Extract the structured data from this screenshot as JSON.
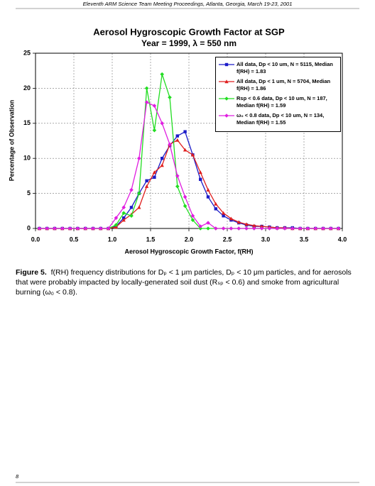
{
  "header": {
    "title": "Eleventh ARM Science Team Meeting Proceedings, Atlanta, Georgia, March 19-23, 2001"
  },
  "chart_data": {
    "type": "line",
    "title": "Aerosol Hygroscopic Growth Factor at SGP",
    "subtitle": "Year = 1999, λ = 550 nm",
    "x_label": "Aerosol Hygroscopic Growth Factor, f(RH)",
    "y_label": "Percentage of Observation",
    "x": [
      0.05,
      0.15,
      0.25,
      0.35,
      0.45,
      0.55,
      0.65,
      0.75,
      0.85,
      0.95,
      1.05,
      1.15,
      1.25,
      1.35,
      1.45,
      1.55,
      1.65,
      1.75,
      1.85,
      1.95,
      2.05,
      2.15,
      2.25,
      2.35,
      2.45,
      2.55,
      2.65,
      2.75,
      2.85,
      2.95,
      3.05,
      3.15,
      3.25,
      3.35,
      3.45,
      3.55,
      3.65,
      3.75,
      3.85,
      3.95
    ],
    "series": [
      {
        "name": "All data, Dp < 10 um, N = 5115, Median f(RH) = 1.83",
        "color": "#1c1cc8",
        "marker": "square",
        "values": [
          0,
          0,
          0,
          0,
          0,
          0,
          0,
          0,
          0,
          0,
          0.3,
          1.5,
          3,
          5,
          6.8,
          7.3,
          10,
          11.8,
          13.2,
          13.8,
          10.5,
          7,
          4.5,
          2.8,
          1.8,
          1.2,
          0.8,
          0.5,
          0.3,
          0.3,
          0.2,
          0.1,
          0.1,
          0.1,
          0,
          0,
          0,
          0,
          0,
          0
        ]
      },
      {
        "name": "All data, Dp < 1 um, N = 5704, Median f(RH) = 1.86",
        "color": "#e01e1e",
        "marker": "triangle",
        "values": [
          0,
          0,
          0,
          0,
          0,
          0,
          0,
          0,
          0,
          0,
          0.2,
          1.2,
          2,
          3,
          6,
          8,
          9,
          12,
          12.6,
          11.2,
          10.5,
          8,
          5.5,
          3.5,
          2.2,
          1.4,
          0.9,
          0.6,
          0.4,
          0.3,
          0.2,
          0.1,
          0.1,
          0,
          0,
          0,
          0,
          0,
          0,
          0
        ]
      },
      {
        "name": "Rsp < 0.6 data, Dp < 10 um, N = 187, Median f(RH) = 1.59",
        "color": "#22dd22",
        "marker": "diamond",
        "values": [
          0,
          0,
          0,
          0,
          0,
          0,
          0,
          0,
          0,
          0,
          0.5,
          2.2,
          1.8,
          5,
          20,
          14,
          22,
          18.7,
          6,
          3.2,
          1.2,
          0,
          0,
          0,
          0,
          0,
          0,
          0,
          0,
          0,
          0,
          0,
          0,
          0,
          0,
          0,
          0,
          0,
          0,
          0
        ]
      },
      {
        "name": "ω₀ < 0.8 data, Dp < 10 um, N = 134, Median f(RH) = 1.55",
        "color": "#e01ee0",
        "marker": "diamond",
        "values": [
          0,
          0,
          0,
          0,
          0,
          0,
          0,
          0,
          0,
          0,
          1.5,
          3,
          5.5,
          10,
          18,
          17.5,
          15,
          12,
          7.5,
          4.5,
          1.8,
          0.3,
          0.8,
          0,
          0,
          0,
          0,
          0,
          0,
          0,
          0,
          0,
          0,
          0,
          0,
          0,
          0,
          0,
          0,
          0
        ]
      }
    ],
    "xlim": [
      0,
      4
    ],
    "ylim": [
      0,
      25
    ],
    "xticks": [
      {
        "value": 0,
        "label": "0.0"
      },
      {
        "value": 0.5,
        "label": "0.5"
      },
      {
        "value": 1,
        "label": "1.0"
      },
      {
        "value": 1.5,
        "label": "1.5"
      },
      {
        "value": 2,
        "label": "2.0"
      },
      {
        "value": 2.5,
        "label": "2.5"
      },
      {
        "value": 3,
        "label": "3.0"
      },
      {
        "value": 3.5,
        "label": "3.5"
      },
      {
        "value": 4,
        "label": "4.0"
      }
    ],
    "yticks": [
      0,
      5,
      10,
      15,
      20,
      25
    ],
    "grid": true,
    "legend": "upper right"
  },
  "caption": {
    "label": "Figure 5.",
    "text": "f(RH) frequency distributions for Dₚ < 1 μm particles, Dₚ < 10 μm particles, and for aerosols that were probably impacted by locally-generated soil dust (Rₛₚ < 0.6) and smoke from agricultural burning (ω₀ < 0.8)."
  },
  "footer": {
    "page_number": "8"
  }
}
